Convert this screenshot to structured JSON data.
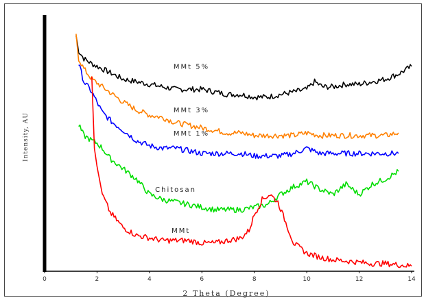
{
  "chart_data": {
    "type": "line",
    "xlabel": "2 Theta (Degree)",
    "ylabel": "Intensity, AU",
    "xlim": [
      0,
      14
    ],
    "x_ticks": [
      "0",
      "2",
      "4",
      "6",
      "8",
      "10",
      "12",
      "14"
    ],
    "grid": false,
    "legend": "none",
    "series": [
      {
        "name": "MMt 5%",
        "color": "#000000",
        "x": [
          1.2,
          1.3,
          1.5,
          1.8,
          2.2,
          2.6,
          3.0,
          3.5,
          4.0,
          4.5,
          5.0,
          5.5,
          6.0,
          6.5,
          7.0,
          7.5,
          8.0,
          8.5,
          9.0,
          9.5,
          10.0,
          10.3,
          10.6,
          11.0,
          11.5,
          12.0,
          12.5,
          13.0,
          13.5,
          14.0
        ],
        "y": [
          9.2,
          8.6,
          8.3,
          8.1,
          7.9,
          7.7,
          7.5,
          7.4,
          7.3,
          7.2,
          7.1,
          7.1,
          7.1,
          7.0,
          6.9,
          6.9,
          6.8,
          6.8,
          6.9,
          7.0,
          7.1,
          7.4,
          7.2,
          7.2,
          7.3,
          7.3,
          7.4,
          7.5,
          7.7,
          8.0
        ]
      },
      {
        "name": "MMt 3%",
        "color": "#ff8000",
        "x": [
          1.2,
          1.3,
          1.5,
          1.8,
          2.2,
          2.6,
          3.0,
          3.5,
          4.0,
          4.5,
          5.0,
          5.5,
          6.0,
          6.5,
          7.0,
          7.5,
          8.0,
          8.5,
          9.0,
          9.5,
          10.0,
          10.5,
          11.0,
          11.5,
          12.0,
          12.5,
          13.0,
          13.5
        ],
        "y": [
          9.2,
          8.3,
          7.9,
          7.5,
          7.2,
          6.9,
          6.6,
          6.3,
          6.1,
          6.0,
          5.8,
          5.7,
          5.6,
          5.5,
          5.4,
          5.4,
          5.3,
          5.3,
          5.3,
          5.3,
          5.4,
          5.3,
          5.3,
          5.3,
          5.3,
          5.3,
          5.3,
          5.4
        ]
      },
      {
        "name": "MMt 1%",
        "color": "#0000ff",
        "x": [
          1.3,
          1.5,
          1.8,
          2.0,
          2.2,
          2.6,
          3.0,
          3.5,
          4.0,
          4.5,
          5.0,
          5.5,
          6.0,
          6.5,
          7.0,
          7.5,
          8.0,
          8.5,
          9.0,
          9.5,
          10.0,
          10.5,
          11.0,
          11.5,
          12.0,
          12.5,
          13.0,
          13.5
        ],
        "y": [
          8.1,
          7.4,
          7.0,
          6.6,
          6.2,
          5.8,
          5.5,
          5.1,
          4.9,
          4.8,
          4.8,
          4.7,
          4.6,
          4.6,
          4.6,
          4.6,
          4.5,
          4.5,
          4.5,
          4.6,
          4.8,
          4.6,
          4.6,
          4.6,
          4.6,
          4.6,
          4.6,
          4.6
        ]
      },
      {
        "name": "Chitosan",
        "color": "#00dd00",
        "x": [
          1.3,
          1.5,
          1.8,
          2.0,
          2.2,
          2.5,
          3.0,
          3.5,
          4.0,
          4.5,
          5.0,
          5.5,
          6.0,
          6.5,
          7.0,
          7.5,
          8.0,
          8.5,
          9.0,
          9.5,
          10.0,
          10.5,
          11.0,
          11.5,
          12.0,
          12.5,
          13.0,
          13.5
        ],
        "y": [
          5.7,
          5.3,
          5.1,
          5.0,
          4.8,
          4.4,
          4.0,
          3.6,
          3.0,
          2.8,
          2.7,
          2.6,
          2.5,
          2.4,
          2.4,
          2.4,
          2.5,
          2.6,
          3.0,
          3.3,
          3.5,
          3.2,
          3.0,
          3.4,
          3.0,
          3.4,
          3.6,
          3.9
        ]
      },
      {
        "name": "MMt",
        "color": "#ff0000",
        "x": [
          1.8,
          1.9,
          2.0,
          2.2,
          2.5,
          3.0,
          3.5,
          4.0,
          4.5,
          5.0,
          5.5,
          6.0,
          6.5,
          7.0,
          7.5,
          7.8,
          8.0,
          8.3,
          8.6,
          8.9,
          9.2,
          9.5,
          10.0,
          10.5,
          11.0,
          11.5,
          12.0,
          12.5,
          13.0,
          13.5,
          14.0
        ],
        "y": [
          7.6,
          4.8,
          4.1,
          3.0,
          2.3,
          1.7,
          1.4,
          1.3,
          1.2,
          1.2,
          1.2,
          1.1,
          1.1,
          1.2,
          1.3,
          1.6,
          2.2,
          2.8,
          3.0,
          2.7,
          1.9,
          1.1,
          0.7,
          0.55,
          0.45,
          0.4,
          0.35,
          0.3,
          0.3,
          0.25,
          0.2
        ]
      }
    ],
    "annotations": [
      "MMt 5%",
      "MMt 3%",
      "MMt 1%",
      "Chitosan",
      "MMt"
    ]
  }
}
